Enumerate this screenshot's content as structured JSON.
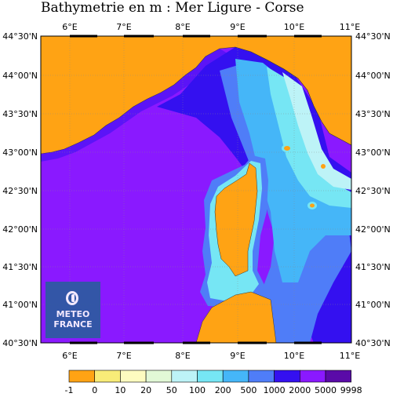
{
  "title": "Bathymetrie en m : Mer Ligure - Corse",
  "colors": {
    "land": "#ffa314",
    "deep_sea": "#8a19ff",
    "level_colors": [
      "#ffa314",
      "#f8ec78",
      "#fdfbc0",
      "#e2f8d6",
      "#bdf3f7",
      "#76e6f4",
      "#45b6f8",
      "#4f7df8",
      "#3410f0",
      "#8a19ff",
      "#5a0aa8"
    ]
  },
  "map": {
    "lon_ticks": [
      "6°E",
      "7°E",
      "8°E",
      "9°E",
      "10°E",
      "11°E"
    ],
    "lat_ticks": [
      "44°30'N",
      "44°00'N",
      "43°30'N",
      "43°00'N",
      "42°30'N",
      "42°00'N",
      "41°30'N",
      "41°00'N",
      "40°30'N"
    ]
  },
  "colorbar": {
    "labels": [
      "-1",
      "0",
      "10",
      "20",
      "50",
      "100",
      "200",
      "500",
      "1000",
      "2000",
      "5000",
      "9998"
    ]
  },
  "logo": {
    "line1": "METEO",
    "line2": "FRANCE",
    "icon": "meteo-france-logo-icon"
  }
}
